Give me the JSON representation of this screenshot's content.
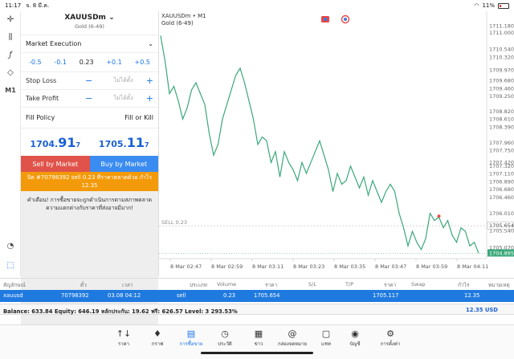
{
  "status": {
    "time": "11:17",
    "date": "จ. 8 มี.ค.",
    "battery": "11%"
  },
  "tools": [
    "crosshair-icon",
    "candles-icon",
    "function-icon",
    "shapes-icon",
    "M1"
  ],
  "tools_bottom": [
    "clock-icon",
    "share-icon"
  ],
  "panel": {
    "symbol": "XAUUSDm",
    "desc": "Gold (6-49)",
    "exec": "Market Execution",
    "vol": {
      "m05": "-0.5",
      "m01": "-0.1",
      "value": "0.23",
      "p01": "+0.1",
      "p05": "+0.5"
    },
    "sl_label": "Stop Loss",
    "sl_placeholder": "ไม่ได้ตั้ง",
    "tp_label": "Take Profit",
    "tp_placeholder": "ไม่ได้ตั้ง",
    "fill_label": "Fill Policy",
    "fill_value": "Fill or Kill",
    "bid": {
      "a": "1704.",
      "b": "91",
      "c": "7"
    },
    "ask": {
      "a": "1705.",
      "b": "11",
      "c": "7"
    },
    "sell_btn": "Sell by Market",
    "buy_btn": "Buy by Market",
    "notice": "ปิด #70798392 sell 0.23 ที่ราคาตลาดด้วย กำไร 12.35",
    "warn": "คำเตือน! การซื้อขายจะถูกดำเนินการตามสภาพตลาด ความแตกต่างกับราคาที่ส่งอาจมีมาก!"
  },
  "chart": {
    "symbol": "XAUUSDm • M1",
    "desc": "Gold (6-49)",
    "y_ticks": [
      "1711.180",
      "1710.970",
      "1710.750",
      "1710.540",
      "1710.320",
      "1710.110",
      "1709.970",
      "1709.680",
      "1709.460",
      "1709.250",
      "1709.040",
      "1708.820",
      "1708.610",
      "1708.390",
      "1708.180",
      "1707.960",
      "1707.750",
      "1707.540",
      "1707.320",
      "1707.110",
      "1706.890",
      "1706.680",
      "1706.460",
      "1706.250",
      "1706.040",
      "1705.820",
      "1705.610",
      "1705.390",
      "1705.180",
      "1704.960",
      "1704.750"
    ],
    "y_tick_show": [
      "1711.180",
      "1711.000",
      "1710.540",
      "1710.320",
      "1709.970",
      "1709.680",
      "1709.460",
      "1709.250",
      "1708.820",
      "1708.610",
      "1708.390",
      "1707.960",
      "1707.750",
      "1707.420",
      "1707.320",
      "1707.110",
      "1706.890",
      "1706.680",
      "1706.460",
      "1706.010",
      "1705.654",
      "1705.540",
      "1705.070"
    ],
    "sell_label": "SELL 0.23",
    "sell_price": "1705.654",
    "last_price": "1704.895",
    "x_labels": [
      "8 Mar 02:47",
      "8 Mar 02:59",
      "8 Mar 03:11",
      "8 Mar 03:23",
      "8 Mar 03:35",
      "8 Mar 03:47",
      "8 Mar 03:59",
      "8 Mar 04:11"
    ]
  },
  "chart_data": {
    "type": "line",
    "ylim": [
      1704.75,
      1711.35
    ],
    "values": [
      1710.9,
      1710.2,
      1709.3,
      1709.5,
      1709.1,
      1708.6,
      1708.9,
      1709.4,
      1709.6,
      1709.3,
      1709.0,
      1708.2,
      1707.6,
      1707.9,
      1708.6,
      1709.0,
      1709.4,
      1709.8,
      1710.0,
      1709.6,
      1709.1,
      1708.6,
      1707.9,
      1708.1,
      1708.0,
      1707.4,
      1707.7,
      1707.0,
      1707.7,
      1707.4,
      1707.2,
      1706.9,
      1707.4,
      1707.1,
      1707.4,
      1707.7,
      1708.0,
      1707.6,
      1707.2,
      1706.6,
      1707.1,
      1706.8,
      1706.9,
      1707.3,
      1707.0,
      1706.7,
      1707.0,
      1706.5,
      1706.9,
      1706.6,
      1706.3,
      1706.6,
      1706.8,
      1706.6,
      1706.0,
      1705.6,
      1705.1,
      1705.5,
      1705.2,
      1705.0,
      1705.3,
      1706.0,
      1705.8,
      1705.9,
      1705.6,
      1705.8,
      1705.4,
      1705.2,
      1705.6,
      1705.5,
      1705.1,
      1705.2,
      1704.9
    ]
  },
  "table": {
    "headers": [
      "สัญลักษณ์",
      "ตั๋ว",
      "เวลา",
      "ประเภท",
      "Volume",
      "ราคา",
      "S/L",
      "T/P",
      "ราคา",
      "Swap",
      "กำไร",
      "หมายเหตุ"
    ],
    "row": [
      "xauusd",
      "70798392",
      "03.08 04:12",
      "sell",
      "0.23",
      "1705.654",
      "",
      "",
      "1705.117",
      "",
      "12.35",
      ""
    ]
  },
  "balance": {
    "text": "Balance: 633.84 Equity: 646.19 หลักประกัน: 19.62 ฟรี: 626.57 Level: 3 293.53%",
    "pl": "12.35  USD"
  },
  "nav": [
    {
      "label": "ราคา",
      "icon": "↑↓"
    },
    {
      "label": "กราฟ",
      "icon": "♦"
    },
    {
      "label": "การซื้อขาย",
      "icon": "▤"
    },
    {
      "label": "ประวัติ",
      "icon": "◷"
    },
    {
      "label": "ข่าว",
      "icon": "▦"
    },
    {
      "label": "กล่องจดหมาย",
      "icon": "@"
    },
    {
      "label": "แชท",
      "icon": "▢"
    },
    {
      "label": "บัญชี",
      "icon": "◉"
    },
    {
      "label": "การตั้งค่า",
      "icon": "⚙"
    }
  ],
  "nav_active": 2,
  "colors": {
    "line": "#3aa87a",
    "sell_line": "#e0534a",
    "accent": "#1a73e8"
  }
}
